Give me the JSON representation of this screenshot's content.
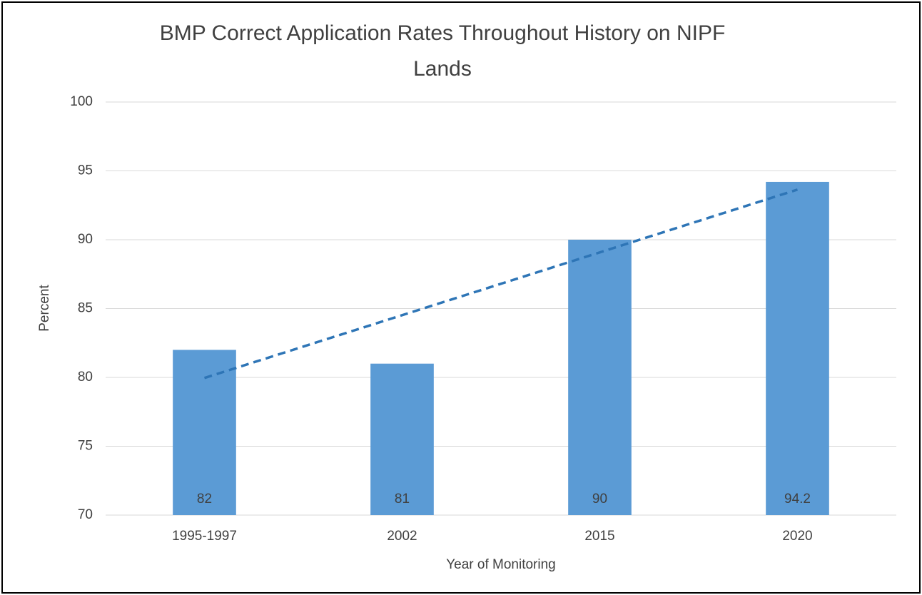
{
  "chart_data": {
    "type": "bar",
    "title": "BMP Correct Application Rates Throughout History on NIPF Lands",
    "x_label": "Year of Monitoring",
    "y_label": "Percent",
    "categories": [
      "1995-1997",
      "2002",
      "2015",
      "2020"
    ],
    "values": [
      82,
      81,
      90,
      94.2
    ],
    "color": "#5b9bd5",
    "ylim": [
      70,
      100
    ],
    "yticks": [
      70,
      75,
      80,
      85,
      90,
      95,
      100
    ],
    "grid": true,
    "trendline": "linear",
    "trendline_color": "#2e75b6"
  }
}
